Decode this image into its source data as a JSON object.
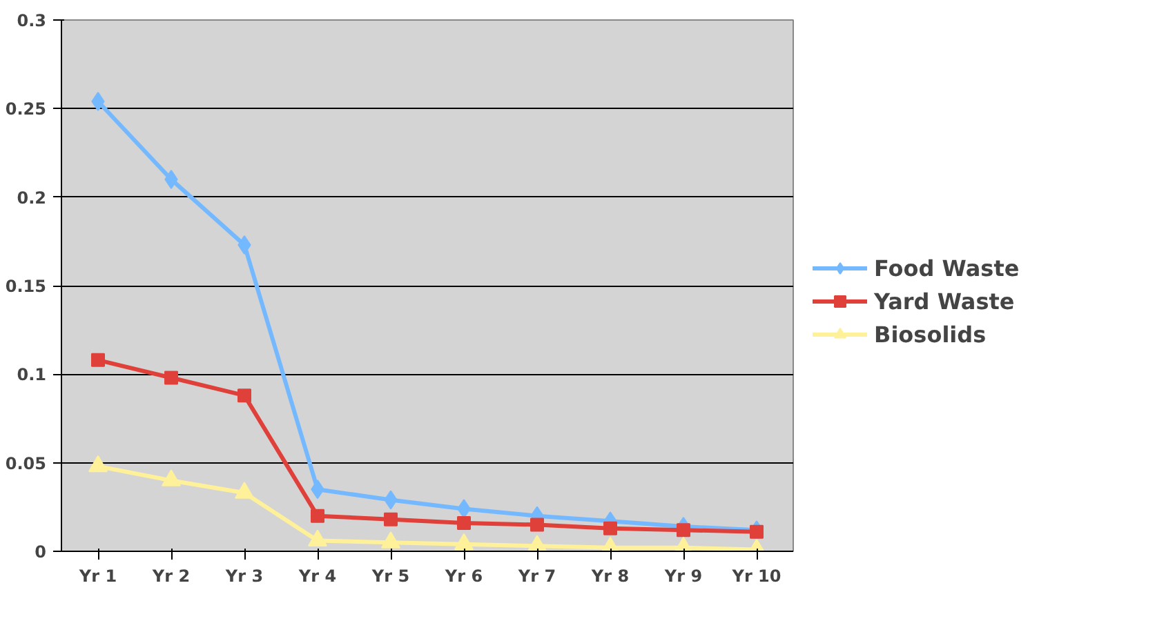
{
  "chart_data": {
    "type": "line",
    "categories": [
      "Yr 1",
      "Yr 2",
      "Yr 3",
      "Yr 4",
      "Yr 5",
      "Yr 6",
      "Yr 7",
      "Yr 8",
      "Yr 9",
      "Yr 10"
    ],
    "series": [
      {
        "name": "Food Waste",
        "color": "#74b9ff",
        "marker": "diamond",
        "values": [
          0.254,
          0.21,
          0.173,
          0.035,
          0.029,
          0.024,
          0.02,
          0.017,
          0.014,
          0.012
        ]
      },
      {
        "name": "Yard Waste",
        "color": "#e0403a",
        "marker": "square",
        "values": [
          0.108,
          0.098,
          0.088,
          0.02,
          0.018,
          0.016,
          0.015,
          0.013,
          0.012,
          0.011
        ]
      },
      {
        "name": "Biosolids",
        "color": "#fff09a",
        "marker": "triangle",
        "values": [
          0.048,
          0.04,
          0.033,
          0.006,
          0.005,
          0.004,
          0.003,
          0.002,
          0.002,
          0.001
        ]
      }
    ],
    "ylim": [
      0,
      0.3
    ],
    "yticks": [
      0,
      0.05,
      0.1,
      0.15,
      0.2,
      0.25,
      0.3
    ],
    "grid": "y",
    "legend": "right"
  }
}
